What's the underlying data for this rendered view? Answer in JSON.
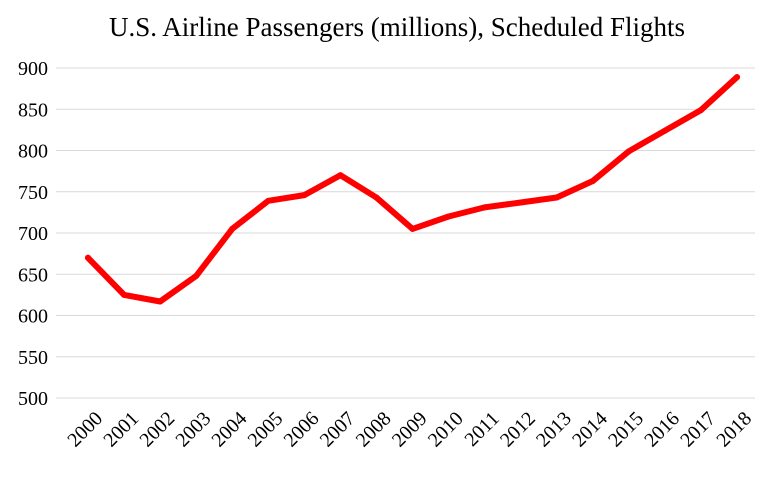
{
  "chart_data": {
    "type": "line",
    "title": "U.S. Airline Passengers (millions), Scheduled Flights",
    "xlabel": "",
    "ylabel": "",
    "categories": [
      "2000",
      "2001",
      "2002",
      "2003",
      "2004",
      "2005",
      "2006",
      "2007",
      "2008",
      "2009",
      "2010",
      "2011",
      "2012",
      "2013",
      "2014",
      "2015",
      "2016",
      "2017",
      "2018"
    ],
    "series": [
      {
        "name": "Passengers (millions)",
        "color": "#ff0000",
        "values": [
          670,
          625,
          617,
          648,
          705,
          739,
          746,
          770,
          743,
          705,
          720,
          731,
          737,
          743,
          763,
          799,
          824,
          849,
          889
        ]
      }
    ],
    "ylim": [
      500,
      900
    ],
    "yticks": [
      500,
      550,
      600,
      650,
      700,
      750,
      800,
      850,
      900
    ],
    "grid": true,
    "legend": "none"
  }
}
